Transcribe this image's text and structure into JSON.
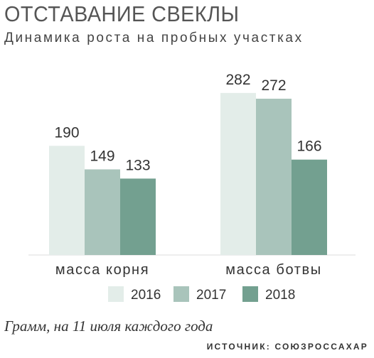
{
  "chart_data": {
    "type": "bar",
    "title": "ОТСТАВАНИЕ СВЕКЛЫ",
    "subtitle": "Динамика роста на пробных участках",
    "categories": [
      "масса корня",
      "масса ботвы"
    ],
    "series": [
      {
        "name": "2016",
        "values": [
          190,
          282
        ],
        "color": "#e3ede9"
      },
      {
        "name": "2017",
        "values": [
          149,
          272
        ],
        "color": "#a9c4bb"
      },
      {
        "name": "2018",
        "values": [
          133,
          166
        ],
        "color": "#73a090"
      }
    ],
    "ylim": [
      0,
      300
    ],
    "grid": false,
    "legend_position": "bottom",
    "footnote": "Грамм, на 11 июля каждого года",
    "source": "ИСТОЧНИК: СОЮЗРОССАХАР"
  }
}
